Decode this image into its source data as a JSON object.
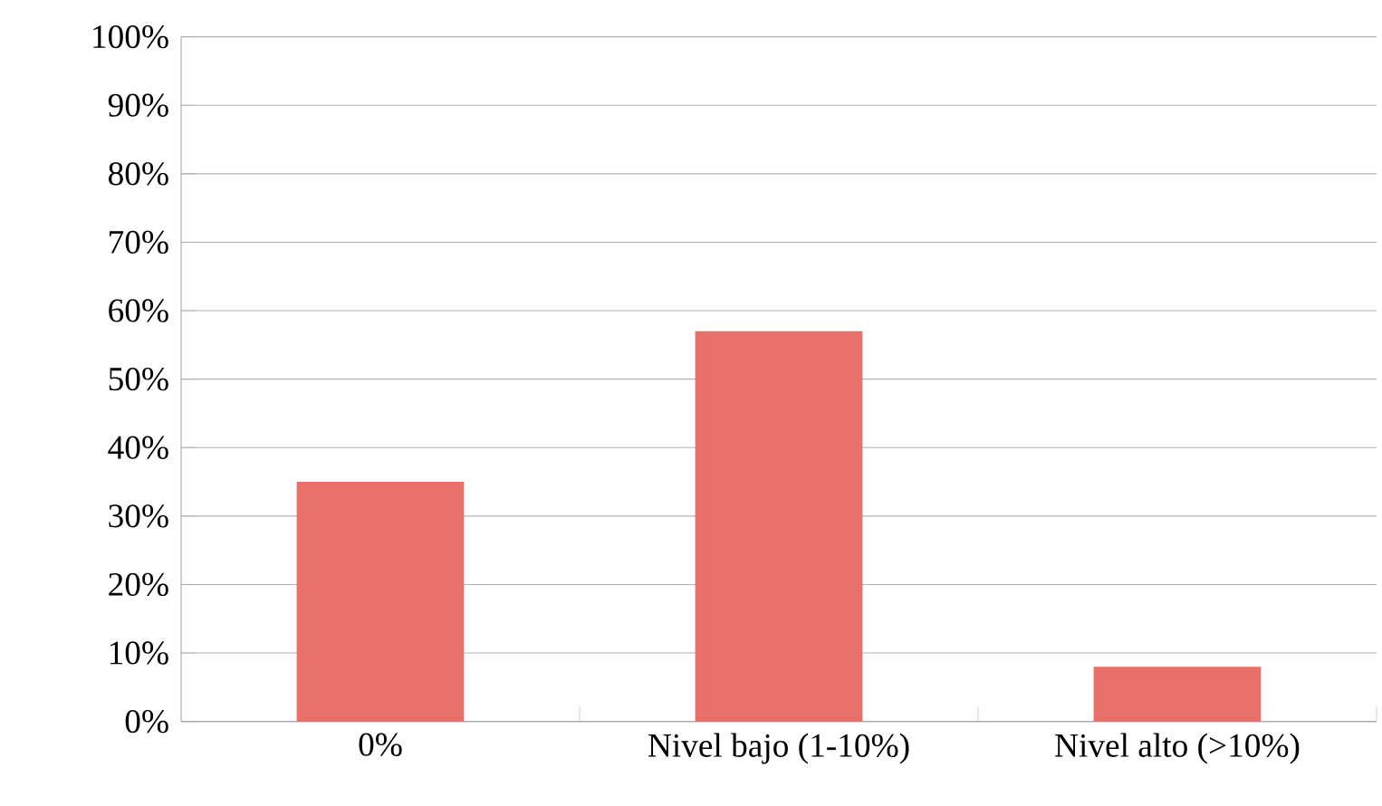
{
  "chart_data": {
    "type": "bar",
    "categories": [
      "0%",
      "Nivel bajo (1-10%)",
      "Nivel alto (>10%)"
    ],
    "values": [
      35,
      57,
      8
    ],
    "color": "#e8706a",
    "ylim": [
      0,
      100
    ],
    "yticks": [
      {
        "value": 0,
        "label": "0%"
      },
      {
        "value": 10,
        "label": "10%"
      },
      {
        "value": 20,
        "label": "20%"
      },
      {
        "value": 30,
        "label": "30%"
      },
      {
        "value": 40,
        "label": "40%"
      },
      {
        "value": 50,
        "label": "50%"
      },
      {
        "value": 60,
        "label": "60%"
      },
      {
        "value": 70,
        "label": "70%"
      },
      {
        "value": 80,
        "label": "80%"
      },
      {
        "value": 90,
        "label": "90%"
      },
      {
        "value": 100,
        "label": "100%"
      }
    ],
    "grid": "y"
  }
}
